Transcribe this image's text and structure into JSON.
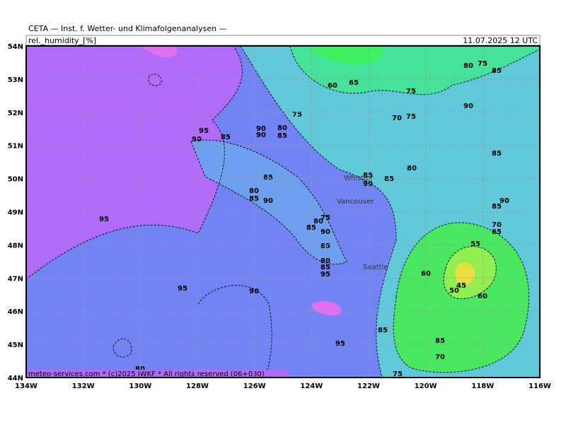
{
  "header": {
    "title": "CETA — Inst. f. Wetter- und Klimafolgenanalysen —",
    "parameter": "rel._humidity_[%]",
    "valid_time": "11.07.2025 12 UTC"
  },
  "axes": {
    "longitude_labels": [
      "134W",
      "132W",
      "130W",
      "128W",
      "126W",
      "124W",
      "122W",
      "120W",
      "118W",
      "116W"
    ],
    "latitude_labels": [
      "54N",
      "53N",
      "52N",
      "51N",
      "50N",
      "49N",
      "48N",
      "47N",
      "46N",
      "45N",
      "44N"
    ]
  },
  "cities": [
    "Whistler",
    "Vancouver",
    "Seattle"
  ],
  "contour_labels": [
    "95",
    "95",
    "90",
    "95",
    "90",
    "85",
    "90",
    "90",
    "80",
    "85",
    "75",
    "60",
    "65",
    "80",
    "75",
    "85",
    "75",
    "70",
    "75",
    "90",
    "85",
    "80",
    "85",
    "90",
    "80",
    "85",
    "85",
    "90",
    "75",
    "80",
    "85",
    "90",
    "85",
    "80",
    "85",
    "95",
    "55",
    "60",
    "50",
    "45",
    "60",
    "85",
    "95",
    "85",
    "70",
    "75",
    "80",
    "90",
    "85",
    "70",
    "65",
    "85"
  ],
  "footer": "meteo-services.com * (c)2025 IWKF * All rights reserved (06+030)"
}
